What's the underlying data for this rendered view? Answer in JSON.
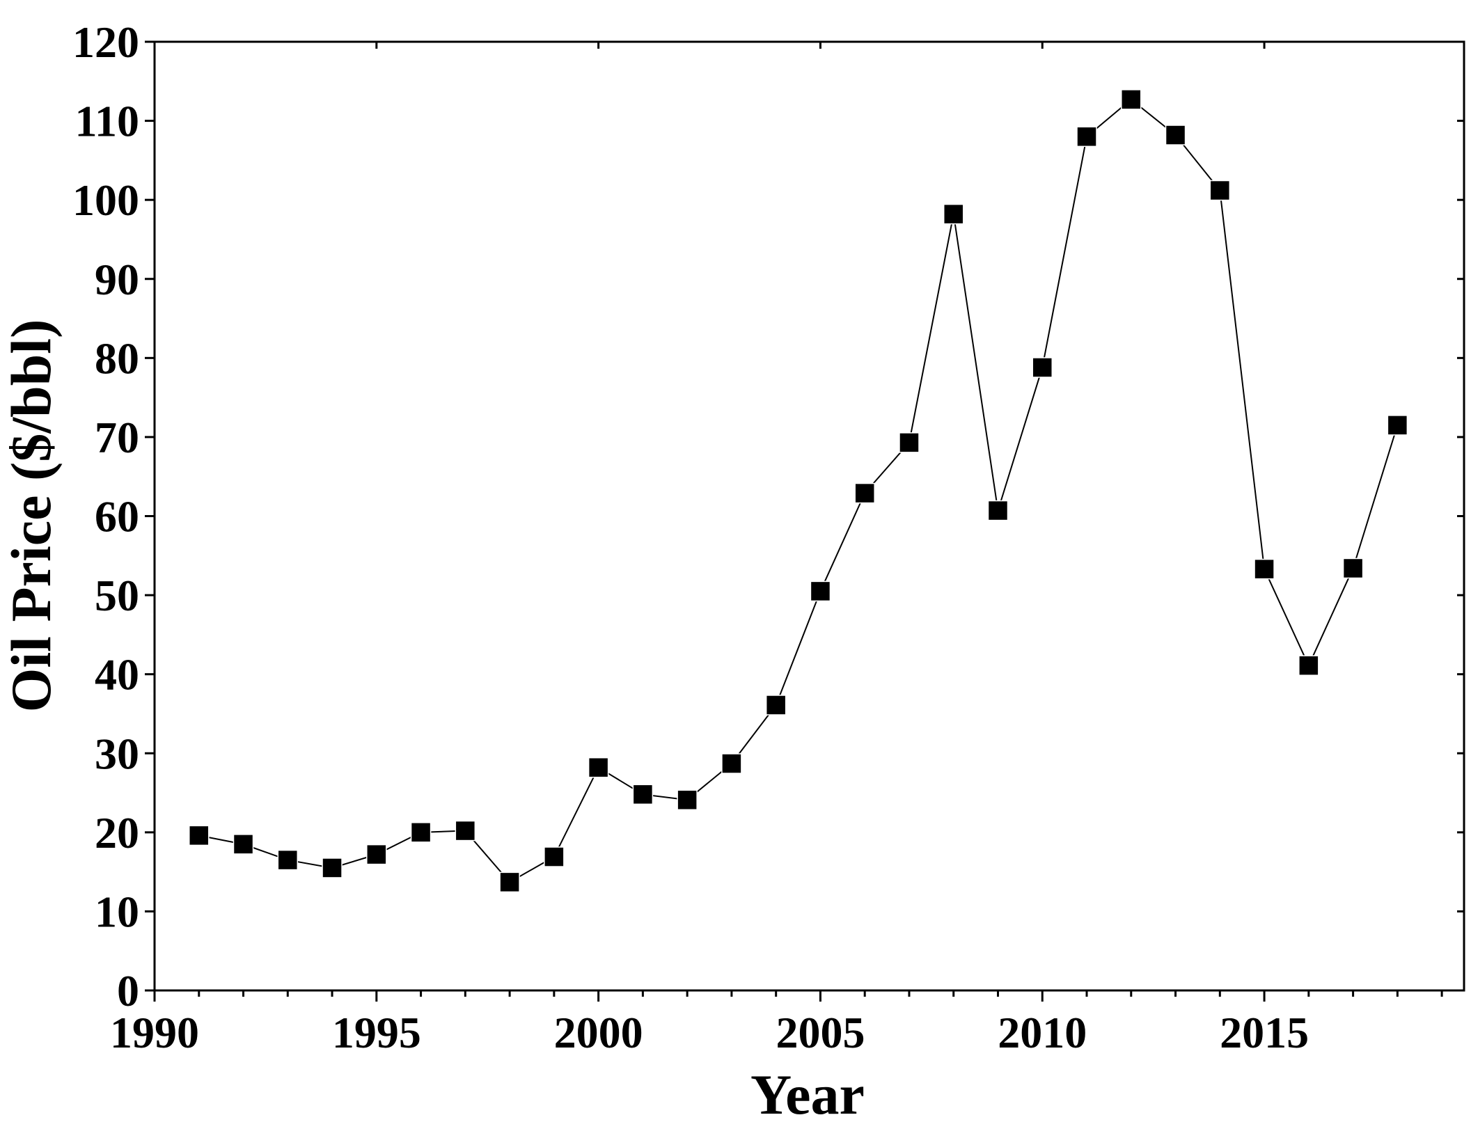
{
  "chart_data": {
    "type": "line",
    "x_label": "Year",
    "y_label": "Oil Price ($/bbl)",
    "x": [
      1991,
      1992,
      1993,
      1994,
      1995,
      1996,
      1997,
      1998,
      1999,
      2000,
      2001,
      2002,
      2003,
      2004,
      2005,
      2006,
      2007,
      2008,
      2009,
      2010,
      2011,
      2012,
      2013,
      2014,
      2015,
      2016,
      2017,
      2018
    ],
    "series": [
      {
        "color": "#000000",
        "marker": "square",
        "values": [
          19.6,
          18.5,
          16.5,
          15.5,
          17.2,
          20.0,
          20.2,
          13.7,
          16.9,
          28.2,
          24.8,
          24.1,
          28.7,
          36.1,
          50.5,
          62.9,
          69.3,
          98.2,
          60.7,
          78.8,
          108.0,
          112.7,
          108.2,
          101.2,
          53.3,
          41.1,
          53.4,
          71.5
        ]
      }
    ],
    "xlim": [
      1990,
      2019.5
    ],
    "xticks": [
      1990,
      1995,
      2000,
      2005,
      2010,
      2015
    ],
    "xminorticks": [
      1991,
      1992,
      1993,
      1994,
      1996,
      1997,
      1998,
      1999,
      2001,
      2002,
      2003,
      2004,
      2006,
      2007,
      2008,
      2009,
      2011,
      2012,
      2013,
      2014,
      2016,
      2017,
      2018,
      2019
    ],
    "ylim": [
      0,
      120
    ],
    "yticks": [
      0,
      10,
      20,
      30,
      40,
      50,
      60,
      70,
      80,
      90,
      100,
      110,
      120
    ],
    "grid": false
  }
}
